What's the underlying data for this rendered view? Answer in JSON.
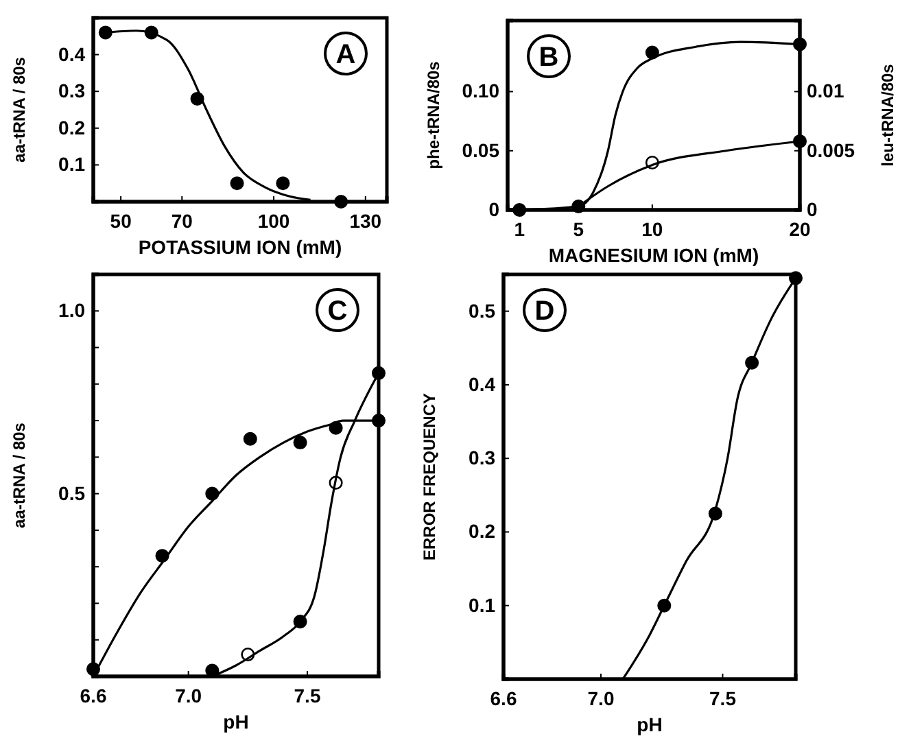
{
  "chart_data": [
    {
      "type": "scatter",
      "xlabel": "POTASSIUM ION (mM)",
      "ylabel": "aa-tRNA / 80s",
      "annotations": [
        "A"
      ],
      "xlim": [
        41,
        137
      ],
      "xticks": [
        50,
        70,
        100,
        130
      ],
      "ylim": [
        0,
        0.5
      ],
      "yticks": [
        0.1,
        0.2,
        0.3,
        0.4
      ],
      "series": [
        {
          "marker": "circle",
          "color": "#000000",
          "x": [
            45,
            60,
            75,
            88,
            103,
            122
          ],
          "values": [
            0.46,
            0.46,
            0.28,
            0.05,
            0.05,
            0
          ]
        },
        {
          "type": "line",
          "marker": "none",
          "color": "#000000",
          "x": [
            45,
            55,
            65,
            72,
            78,
            84,
            90,
            97,
            105,
            112
          ],
          "values": [
            0.46,
            0.465,
            0.44,
            0.36,
            0.25,
            0.15,
            0.08,
            0.04,
            0.015,
            0.005
          ]
        }
      ]
    },
    {
      "type": "scatter",
      "xlabel": "MAGNESIUM ION (mM)",
      "ylabel": "phe-tRNA/80s",
      "y2label": "leu-tRNA/80s",
      "annotations": [
        "B"
      ],
      "xlim": [
        0.2,
        20
      ],
      "xticks": [
        1,
        5,
        10,
        20
      ],
      "ylim": [
        0,
        0.16
      ],
      "yticks": [
        0,
        {
          "value": 0.05,
          "label": "0.05"
        },
        {
          "value": 0.1,
          "label": "0.10"
        }
      ],
      "y2lim": [
        0,
        0.016
      ],
      "y2ticks": [
        0,
        0.005,
        0.01
      ],
      "series": [
        {
          "marker": "circle",
          "color": "#000000",
          "x": [
            1,
            5,
            10,
            20
          ],
          "values": [
            0,
            0.003,
            0.133,
            0.14
          ]
        },
        {
          "type": "line",
          "marker": "none",
          "color": "#000000",
          "x": [
            1,
            5,
            6,
            7,
            7.5,
            8,
            9,
            10,
            13,
            16,
            20
          ],
          "values": [
            0,
            0.003,
            0.015,
            0.05,
            0.08,
            0.1,
            0.12,
            0.128,
            0.138,
            0.142,
            0.14
          ]
        },
        {
          "marker": "circle",
          "axis": "y2",
          "color": "#ffffff",
          "x": [
            10
          ],
          "values": [
            0.004
          ]
        },
        {
          "marker": "circle",
          "axis": "y2",
          "color": "#000000",
          "x": [
            20
          ],
          "values": [
            0.0058
          ]
        },
        {
          "type": "line",
          "marker": "none",
          "axis": "y2",
          "color": "#000000",
          "x": [
            5,
            7,
            10,
            15,
            20
          ],
          "values": [
            0.0003,
            0.002,
            0.0038,
            0.005,
            0.0058
          ]
        }
      ]
    },
    {
      "type": "scatter",
      "xlabel": "pH",
      "ylabel": "aa-tRNA / 80s",
      "annotations": [
        "C"
      ],
      "xlim": [
        6.6,
        7.8
      ],
      "xticks": [
        6.6,
        {
          "value": 7.0,
          "label": "7.0"
        },
        7.5
      ],
      "ylim": [
        0,
        1.1
      ],
      "yticks": [
        {
          "value": 0.1,
          "label": null
        },
        {
          "value": 0.2,
          "label": null
        },
        {
          "value": 0.3,
          "label": null
        },
        {
          "value": 0.4,
          "label": null
        },
        0.5,
        {
          "value": 0.6,
          "label": null
        },
        {
          "value": 0.7,
          "label": null
        },
        {
          "value": 0.8,
          "label": null
        },
        {
          "value": 0.9,
          "label": null
        },
        {
          "value": 1.0,
          "label": "1.0"
        }
      ],
      "series": [
        {
          "marker": "circle",
          "color": "#000000",
          "x": [
            6.6,
            6.89,
            7.1,
            7.26,
            7.47,
            7.62,
            7.8
          ],
          "values": [
            0.02,
            0.33,
            0.5,
            0.65,
            0.64,
            0.68,
            0.7
          ]
        },
        {
          "type": "line",
          "marker": "none",
          "color": "#000000",
          "x": [
            6.6,
            6.7,
            6.8,
            6.9,
            7.0,
            7.1,
            7.2,
            7.3,
            7.4,
            7.5,
            7.6,
            7.65,
            7.8
          ],
          "values": [
            0.0,
            0.12,
            0.23,
            0.32,
            0.41,
            0.48,
            0.55,
            0.6,
            0.64,
            0.67,
            0.69,
            0.7,
            0.7
          ]
        },
        {
          "marker": "circle",
          "color": "#000000",
          "x": [
            7.1,
            7.47,
            7.8
          ],
          "values": [
            0.016,
            0.15,
            0.83
          ]
        },
        {
          "marker": "circle",
          "color": "#ffffff",
          "x": [
            7.25,
            7.62
          ],
          "values": [
            0.06,
            0.53
          ]
        },
        {
          "type": "line",
          "marker": "none",
          "color": "#000000",
          "x": [
            7.1,
            7.2,
            7.3,
            7.4,
            7.47,
            7.53,
            7.57,
            7.6,
            7.64,
            7.7,
            7.8
          ],
          "values": [
            0.0,
            0.03,
            0.07,
            0.11,
            0.15,
            0.22,
            0.35,
            0.47,
            0.6,
            0.7,
            0.83
          ]
        }
      ]
    },
    {
      "type": "scatter",
      "xlabel": "pH",
      "ylabel": "ERROR FREQUENCY",
      "annotations": [
        "D"
      ],
      "xlim": [
        6.6,
        7.8
      ],
      "xticks": [
        6.6,
        {
          "value": 7.0,
          "label": "7.0"
        },
        7.5
      ],
      "ylim": [
        0,
        0.55
      ],
      "yticks": [
        0.1,
        0.2,
        0.3,
        0.4,
        0.5
      ],
      "series": [
        {
          "marker": "circle",
          "color": "#000000",
          "x": [
            7.26,
            7.47,
            7.62,
            7.8
          ],
          "values": [
            0.1,
            0.225,
            0.43,
            0.545
          ]
        },
        {
          "type": "line",
          "marker": "none",
          "color": "#000000",
          "x": [
            7.09,
            7.2,
            7.26,
            7.35,
            7.47,
            7.52,
            7.56,
            7.62,
            7.7,
            7.8
          ],
          "values": [
            0,
            0.06,
            0.1,
            0.16,
            0.23,
            0.3,
            0.38,
            0.43,
            0.49,
            0.545
          ]
        }
      ]
    }
  ]
}
